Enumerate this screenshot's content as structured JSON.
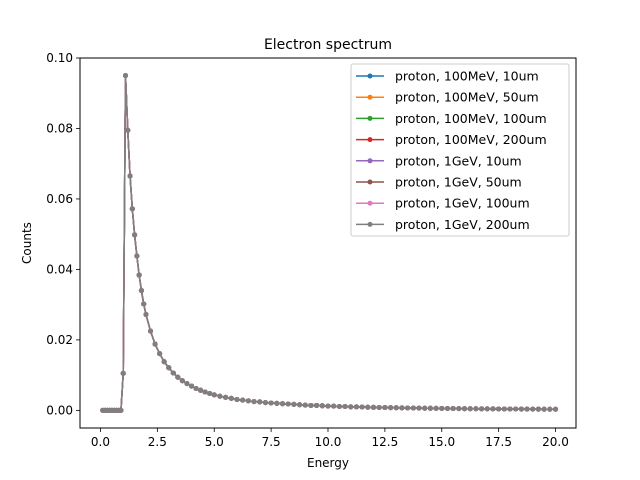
{
  "chart_data": {
    "type": "line",
    "title": "Electron spectrum",
    "xlabel": "Energy",
    "ylabel": "Counts",
    "xlim": [
      -0.9,
      20.9
    ],
    "ylim": [
      -0.005,
      0.1
    ],
    "x_ticks": [
      0.0,
      2.5,
      5.0,
      7.5,
      10.0,
      12.5,
      15.0,
      17.5,
      20.0
    ],
    "x_tick_labels": [
      "0.0",
      "2.5",
      "5.0",
      "7.5",
      "10.0",
      "12.5",
      "15.0",
      "17.5",
      "20.0"
    ],
    "y_ticks": [
      0.0,
      0.02,
      0.04,
      0.06,
      0.08,
      0.1
    ],
    "y_tick_labels": [
      "0.00",
      "0.02",
      "0.04",
      "0.06",
      "0.08",
      "0.10"
    ],
    "grid": false,
    "legend_position": "top-right",
    "marker": "circle",
    "x": [
      0.1,
      0.2,
      0.3,
      0.4,
      0.5,
      0.6,
      0.7,
      0.8,
      0.9,
      1.0,
      1.1,
      1.2,
      1.3,
      1.4,
      1.5,
      1.6,
      1.7,
      1.8,
      1.9,
      2.0,
      2.2,
      2.4,
      2.6,
      2.8,
      3.0,
      3.2,
      3.4,
      3.6,
      3.8,
      4.0,
      4.2,
      4.4,
      4.6,
      4.8,
      5.0,
      5.25,
      5.5,
      5.75,
      6.0,
      6.25,
      6.5,
      6.75,
      7.0,
      7.25,
      7.5,
      7.75,
      8.0,
      8.25,
      8.5,
      8.75,
      9.0,
      9.25,
      9.5,
      9.75,
      10.0,
      10.25,
      10.5,
      10.75,
      11.0,
      11.25,
      11.5,
      11.75,
      12.0,
      12.25,
      12.5,
      12.75,
      13.0,
      13.25,
      13.5,
      13.75,
      14.0,
      14.25,
      14.5,
      14.75,
      15.0,
      15.25,
      15.5,
      15.75,
      16.0,
      16.25,
      16.5,
      16.75,
      17.0,
      17.25,
      17.5,
      17.75,
      18.0,
      18.25,
      18.5,
      18.75,
      19.0,
      19.25,
      19.5,
      19.75,
      20.0
    ],
    "series": [
      {
        "name": "proton, 100MeV, 10um",
        "color": "#1f77b4",
        "values": [
          0.0,
          0.0,
          0.0,
          0.0,
          0.0,
          0.0,
          0.0,
          0.0,
          0.0,
          0.0105,
          0.095,
          0.0795,
          0.0665,
          0.0572,
          0.0498,
          0.0438,
          0.0384,
          0.034,
          0.0302,
          0.0272,
          0.0225,
          0.0188,
          0.0161,
          0.0138,
          0.0121,
          0.0106,
          0.0094,
          0.0084,
          0.0076,
          0.0069,
          0.0062,
          0.0057,
          0.0052,
          0.0048,
          0.0044,
          0.004,
          0.0037,
          0.0034,
          0.0031,
          0.0029,
          0.0027,
          0.0025,
          0.0024,
          0.0022,
          0.0021,
          0.002,
          0.0019,
          0.0018,
          0.0017,
          0.0016,
          0.0015,
          0.0014,
          0.0014,
          0.0013,
          0.0012,
          0.0012,
          0.0011,
          0.0011,
          0.001,
          0.001,
          0.00095,
          0.0009,
          0.00087,
          0.00083,
          0.0008,
          0.00077,
          0.00074,
          0.00071,
          0.00068,
          0.00066,
          0.00063,
          0.00061,
          0.00059,
          0.00057,
          0.00055,
          0.00053,
          0.00052,
          0.0005,
          0.00048,
          0.00047,
          0.00046,
          0.00044,
          0.00043,
          0.00042,
          0.00041,
          0.0004,
          0.00039,
          0.00038,
          0.00037,
          0.00036,
          0.00035,
          0.00034,
          0.00033,
          0.00032,
          0.00031
        ]
      },
      {
        "name": "proton, 100MeV, 50um",
        "color": "#ff7f0e",
        "values": [
          0.0,
          0.0,
          0.0,
          0.0,
          0.0,
          0.0,
          0.0,
          0.0,
          0.0,
          0.0105,
          0.095,
          0.0795,
          0.0665,
          0.0572,
          0.0498,
          0.0438,
          0.0384,
          0.034,
          0.0302,
          0.0272,
          0.0225,
          0.0188,
          0.0161,
          0.0138,
          0.0121,
          0.0106,
          0.0094,
          0.0084,
          0.0076,
          0.0069,
          0.0062,
          0.0057,
          0.0052,
          0.0048,
          0.0044,
          0.004,
          0.0037,
          0.0034,
          0.0031,
          0.0029,
          0.0027,
          0.0025,
          0.0024,
          0.0022,
          0.0021,
          0.002,
          0.0019,
          0.0018,
          0.0017,
          0.0016,
          0.0015,
          0.0014,
          0.0014,
          0.0013,
          0.0012,
          0.0012,
          0.0011,
          0.0011,
          0.001,
          0.001,
          0.00095,
          0.0009,
          0.00087,
          0.00083,
          0.0008,
          0.00077,
          0.00074,
          0.00071,
          0.00068,
          0.00066,
          0.00063,
          0.00061,
          0.00059,
          0.00057,
          0.00055,
          0.00053,
          0.00052,
          0.0005,
          0.00048,
          0.00047,
          0.00046,
          0.00044,
          0.00043,
          0.00042,
          0.00041,
          0.0004,
          0.00039,
          0.00038,
          0.00037,
          0.00036,
          0.00035,
          0.00034,
          0.00033,
          0.00032,
          0.00031
        ]
      },
      {
        "name": "proton, 100MeV, 100um",
        "color": "#2ca02c",
        "values": [
          0.0,
          0.0,
          0.0,
          0.0,
          0.0,
          0.0,
          0.0,
          0.0,
          0.0,
          0.0105,
          0.095,
          0.0795,
          0.0665,
          0.0572,
          0.0498,
          0.0438,
          0.0384,
          0.034,
          0.0302,
          0.0272,
          0.0225,
          0.0188,
          0.0161,
          0.0138,
          0.0121,
          0.0106,
          0.0094,
          0.0084,
          0.0076,
          0.0069,
          0.0062,
          0.0057,
          0.0052,
          0.0048,
          0.0044,
          0.004,
          0.0037,
          0.0034,
          0.0031,
          0.0029,
          0.0027,
          0.0025,
          0.0024,
          0.0022,
          0.0021,
          0.002,
          0.0019,
          0.0018,
          0.0017,
          0.0016,
          0.0015,
          0.0014,
          0.0014,
          0.0013,
          0.0012,
          0.0012,
          0.0011,
          0.0011,
          0.001,
          0.001,
          0.00095,
          0.0009,
          0.00087,
          0.00083,
          0.0008,
          0.00077,
          0.00074,
          0.00071,
          0.00068,
          0.00066,
          0.00063,
          0.00061,
          0.00059,
          0.00057,
          0.00055,
          0.00053,
          0.00052,
          0.0005,
          0.00048,
          0.00047,
          0.00046,
          0.00044,
          0.00043,
          0.00042,
          0.00041,
          0.0004,
          0.00039,
          0.00038,
          0.00037,
          0.00036,
          0.00035,
          0.00034,
          0.00033,
          0.00032,
          0.00031
        ]
      },
      {
        "name": "proton, 100MeV, 200um",
        "color": "#d62728",
        "values": [
          0.0,
          0.0,
          0.0,
          0.0,
          0.0,
          0.0,
          0.0,
          0.0,
          0.0,
          0.0105,
          0.095,
          0.0795,
          0.0665,
          0.0572,
          0.0498,
          0.0438,
          0.0384,
          0.034,
          0.0302,
          0.0272,
          0.0225,
          0.0188,
          0.0161,
          0.0138,
          0.0121,
          0.0106,
          0.0094,
          0.0084,
          0.0076,
          0.0069,
          0.0062,
          0.0057,
          0.0052,
          0.0048,
          0.0044,
          0.004,
          0.0037,
          0.0034,
          0.0031,
          0.0029,
          0.0027,
          0.0025,
          0.0024,
          0.0022,
          0.0021,
          0.002,
          0.0019,
          0.0018,
          0.0017,
          0.0016,
          0.0015,
          0.0014,
          0.0014,
          0.0013,
          0.0012,
          0.0012,
          0.0011,
          0.0011,
          0.001,
          0.001,
          0.00095,
          0.0009,
          0.00087,
          0.00083,
          0.0008,
          0.00077,
          0.00074,
          0.00071,
          0.00068,
          0.00066,
          0.00063,
          0.00061,
          0.00059,
          0.00057,
          0.00055,
          0.00053,
          0.00052,
          0.0005,
          0.00048,
          0.00047,
          0.00046,
          0.00044,
          0.00043,
          0.00042,
          0.00041,
          0.0004,
          0.00039,
          0.00038,
          0.00037,
          0.00036,
          0.00035,
          0.00034,
          0.00033,
          0.00032,
          0.00031
        ]
      },
      {
        "name": "proton, 1GeV, 10um",
        "color": "#9467bd",
        "values": [
          0.0,
          0.0,
          0.0,
          0.0,
          0.0,
          0.0,
          0.0,
          0.0,
          0.0,
          0.0105,
          0.095,
          0.0795,
          0.0665,
          0.0572,
          0.0498,
          0.0438,
          0.0384,
          0.034,
          0.0302,
          0.0272,
          0.0225,
          0.0188,
          0.0161,
          0.0138,
          0.0121,
          0.0106,
          0.0094,
          0.0084,
          0.0076,
          0.0069,
          0.0062,
          0.0057,
          0.0052,
          0.0048,
          0.0044,
          0.004,
          0.0037,
          0.0034,
          0.0031,
          0.0029,
          0.0027,
          0.0025,
          0.0024,
          0.0022,
          0.0021,
          0.002,
          0.0019,
          0.0018,
          0.0017,
          0.0016,
          0.0015,
          0.0014,
          0.0014,
          0.0013,
          0.0012,
          0.0012,
          0.0011,
          0.0011,
          0.001,
          0.001,
          0.00095,
          0.0009,
          0.00087,
          0.00083,
          0.0008,
          0.00077,
          0.00074,
          0.00071,
          0.00068,
          0.00066,
          0.00063,
          0.00061,
          0.00059,
          0.00057,
          0.00055,
          0.00053,
          0.00052,
          0.0005,
          0.00048,
          0.00047,
          0.00046,
          0.00044,
          0.00043,
          0.00042,
          0.00041,
          0.0004,
          0.00039,
          0.00038,
          0.00037,
          0.00036,
          0.00035,
          0.00034,
          0.00033,
          0.00032,
          0.00031
        ]
      },
      {
        "name": "proton, 1GeV, 50um",
        "color": "#8c564b",
        "values": [
          0.0,
          0.0,
          0.0,
          0.0,
          0.0,
          0.0,
          0.0,
          0.0,
          0.0,
          0.0105,
          0.095,
          0.0795,
          0.0665,
          0.0572,
          0.0498,
          0.0438,
          0.0384,
          0.034,
          0.0302,
          0.0272,
          0.0225,
          0.0188,
          0.0161,
          0.0138,
          0.0121,
          0.0106,
          0.0094,
          0.0084,
          0.0076,
          0.0069,
          0.0062,
          0.0057,
          0.0052,
          0.0048,
          0.0044,
          0.004,
          0.0037,
          0.0034,
          0.0031,
          0.0029,
          0.0027,
          0.0025,
          0.0024,
          0.0022,
          0.0021,
          0.002,
          0.0019,
          0.0018,
          0.0017,
          0.0016,
          0.0015,
          0.0014,
          0.0014,
          0.0013,
          0.0012,
          0.0012,
          0.0011,
          0.0011,
          0.001,
          0.001,
          0.00095,
          0.0009,
          0.00087,
          0.00083,
          0.0008,
          0.00077,
          0.00074,
          0.00071,
          0.00068,
          0.00066,
          0.00063,
          0.00061,
          0.00059,
          0.00057,
          0.00055,
          0.00053,
          0.00052,
          0.0005,
          0.00048,
          0.00047,
          0.00046,
          0.00044,
          0.00043,
          0.00042,
          0.00041,
          0.0004,
          0.00039,
          0.00038,
          0.00037,
          0.00036,
          0.00035,
          0.00034,
          0.00033,
          0.00032,
          0.00031
        ]
      },
      {
        "name": "proton, 1GeV, 100um",
        "color": "#e377c2",
        "values": [
          0.0,
          0.0,
          0.0,
          0.0,
          0.0,
          0.0,
          0.0,
          0.0,
          0.0,
          0.0105,
          0.095,
          0.0795,
          0.0665,
          0.0572,
          0.0498,
          0.0438,
          0.0384,
          0.034,
          0.0302,
          0.0272,
          0.0225,
          0.0188,
          0.0161,
          0.0138,
          0.0121,
          0.0106,
          0.0094,
          0.0084,
          0.0076,
          0.0069,
          0.0062,
          0.0057,
          0.0052,
          0.0048,
          0.0044,
          0.004,
          0.0037,
          0.0034,
          0.0031,
          0.0029,
          0.0027,
          0.0025,
          0.0024,
          0.0022,
          0.0021,
          0.002,
          0.0019,
          0.0018,
          0.0017,
          0.0016,
          0.0015,
          0.0014,
          0.0014,
          0.0013,
          0.0012,
          0.0012,
          0.0011,
          0.0011,
          0.001,
          0.001,
          0.00095,
          0.0009,
          0.00087,
          0.00083,
          0.0008,
          0.00077,
          0.00074,
          0.00071,
          0.00068,
          0.00066,
          0.00063,
          0.00061,
          0.00059,
          0.00057,
          0.00055,
          0.00053,
          0.00052,
          0.0005,
          0.00048,
          0.00047,
          0.00046,
          0.00044,
          0.00043,
          0.00042,
          0.00041,
          0.0004,
          0.00039,
          0.00038,
          0.00037,
          0.00036,
          0.00035,
          0.00034,
          0.00033,
          0.00032,
          0.00031
        ]
      },
      {
        "name": "proton, 1GeV, 200um",
        "color": "#7f7f7f",
        "values": [
          0.0,
          0.0,
          0.0,
          0.0,
          0.0,
          0.0,
          0.0,
          0.0,
          0.0,
          0.0105,
          0.095,
          0.0795,
          0.0665,
          0.0572,
          0.0498,
          0.0438,
          0.0384,
          0.034,
          0.0302,
          0.0272,
          0.0225,
          0.0188,
          0.0161,
          0.0138,
          0.0121,
          0.0106,
          0.0094,
          0.0084,
          0.0076,
          0.0069,
          0.0062,
          0.0057,
          0.0052,
          0.0048,
          0.0044,
          0.004,
          0.0037,
          0.0034,
          0.0031,
          0.0029,
          0.0027,
          0.0025,
          0.0024,
          0.0022,
          0.0021,
          0.002,
          0.0019,
          0.0018,
          0.0017,
          0.0016,
          0.0015,
          0.0014,
          0.0014,
          0.0013,
          0.0012,
          0.0012,
          0.0011,
          0.0011,
          0.001,
          0.001,
          0.00095,
          0.0009,
          0.00087,
          0.00083,
          0.0008,
          0.00077,
          0.00074,
          0.00071,
          0.00068,
          0.00066,
          0.00063,
          0.00061,
          0.00059,
          0.00057,
          0.00055,
          0.00053,
          0.00052,
          0.0005,
          0.00048,
          0.00047,
          0.00046,
          0.00044,
          0.00043,
          0.00042,
          0.00041,
          0.0004,
          0.00039,
          0.00038,
          0.00037,
          0.00036,
          0.00035,
          0.00034,
          0.00033,
          0.00032,
          0.00031
        ]
      }
    ]
  }
}
